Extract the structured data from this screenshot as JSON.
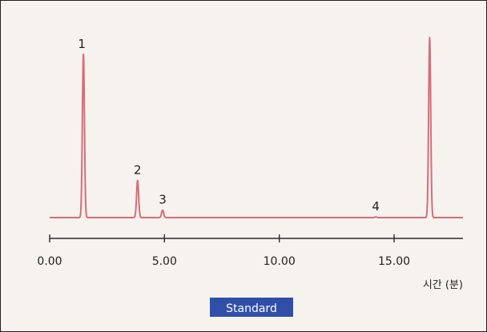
{
  "chart_data": {
    "type": "line",
    "title": "",
    "xlabel": "시간 (분)",
    "ylabel": "",
    "x_ticks": [
      "0.00",
      "5.00",
      "10.00",
      "15.00"
    ],
    "x_tick_values": [
      0,
      5,
      10,
      15
    ],
    "xlim": [
      0,
      18
    ],
    "ylim": [
      0,
      100
    ],
    "grid": false,
    "legend": "none",
    "badge": "Standard",
    "colors": {
      "trace": "#d96b7a",
      "badge": "#2f4fa8",
      "background": "#f6f3ef",
      "axis": "#2a2a2a"
    },
    "peaks": [
      {
        "label": "1",
        "time": 1.47,
        "height": 88
      },
      {
        "label": "2",
        "time": 3.83,
        "height": 20
      },
      {
        "label": "3",
        "time": 4.92,
        "height": 4
      },
      {
        "label": "4",
        "time": 14.2,
        "height": 0.4
      },
      {
        "label": "",
        "time": 16.55,
        "height": 97
      }
    ],
    "baseline": 0
  }
}
